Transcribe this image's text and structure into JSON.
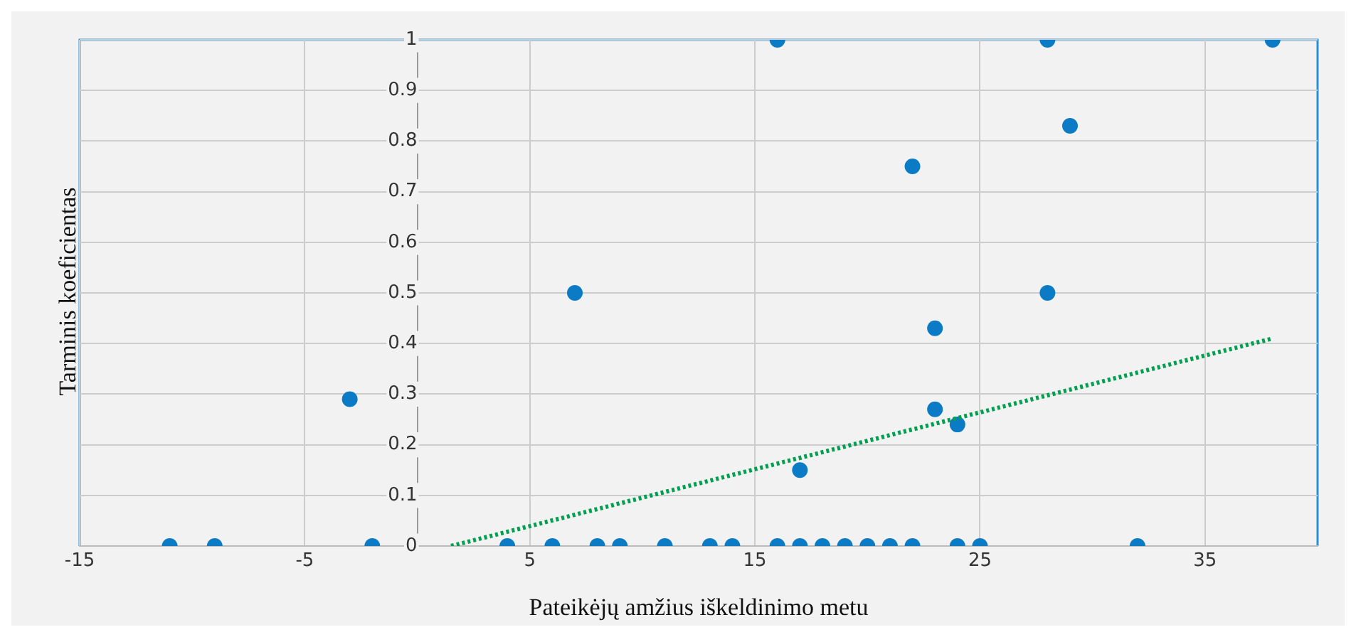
{
  "chart_data": {
    "type": "scatter",
    "xlabel": "Pateikėjų amžius iškeldinimo metu",
    "ylabel": "Tarminis koeficientas",
    "xlim": [
      -15,
      40
    ],
    "xticks": [
      -15,
      -5,
      5,
      15,
      25,
      35
    ],
    "ylim": [
      0,
      1
    ],
    "yticks": [
      0,
      0.1,
      0.2,
      0.3,
      0.4,
      0.5,
      0.6,
      0.7,
      0.8,
      0.9,
      1
    ],
    "grid": true,
    "legend": false,
    "series": [
      {
        "color": "#0a7bc4",
        "marker": "circle",
        "x": [
          -11,
          -9,
          -2,
          4,
          6,
          8,
          9,
          11,
          13,
          14,
          16,
          17,
          18,
          19,
          20,
          21,
          22,
          24,
          25,
          32,
          -3,
          7,
          17,
          23,
          24,
          16,
          28,
          38,
          29,
          22,
          28,
          23
        ],
        "values": [
          0,
          0,
          0,
          0,
          0,
          0,
          0,
          0,
          0,
          0,
          0,
          0,
          0,
          0,
          0,
          0,
          0,
          0,
          0,
          0,
          0.29,
          0.5,
          0.15,
          0.27,
          0.24,
          1,
          1,
          1,
          0.83,
          0.75,
          0.5,
          0.43
        ]
      },
      {
        "type": "line",
        "color": "#00a050",
        "marker": "none",
        "line_style": "dotted",
        "x": [
          1.5,
          38
        ],
        "values": [
          0,
          0.41
        ]
      }
    ]
  }
}
